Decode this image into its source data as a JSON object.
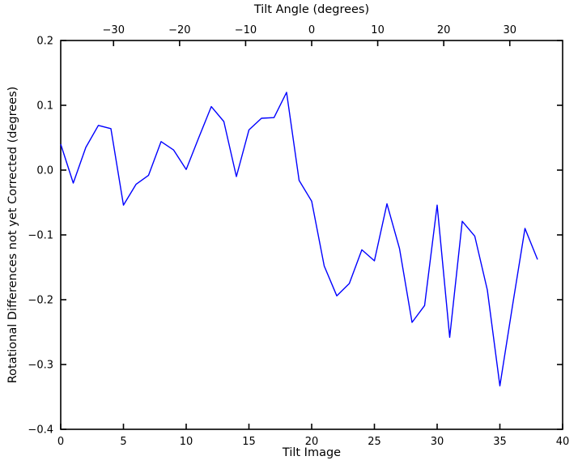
{
  "figure": {
    "top_axis_title": "Tilt Angle (degrees)",
    "x_axis_label": "Tilt Image",
    "y_axis_label": "Rotational Differences not yet Corrected (degrees)"
  },
  "chart_data": {
    "type": "line",
    "title": "Tilt Angle (degrees)",
    "xlabel": "Tilt Image",
    "ylabel": "Rotational Differences not yet Corrected (degrees)",
    "grid": false,
    "legend": null,
    "line_color": "#0000ff",
    "axis_color": "#000000",
    "background_color": "#ffffff",
    "xlim": [
      0,
      40
    ],
    "ylim": [
      -0.4,
      0.2
    ],
    "top_xlim": [
      -38,
      38
    ],
    "xticks": [
      0,
      5,
      10,
      15,
      20,
      25,
      30,
      35,
      40
    ],
    "xtick_labels": [
      "0",
      "5",
      "10",
      "15",
      "20",
      "25",
      "30",
      "35",
      "40"
    ],
    "yticks": [
      0.2,
      0.1,
      0.0,
      -0.1,
      -0.2,
      -0.3,
      -0.4
    ],
    "ytick_labels": [
      "0.2",
      "0.1",
      "0.0",
      "−0.1",
      "−0.2",
      "−0.3",
      "−0.4"
    ],
    "top_xticks": [
      -30,
      -20,
      -10,
      0,
      10,
      20,
      30
    ],
    "top_xtick_labels": [
      "−30",
      "−20",
      "−10",
      "0",
      "10",
      "20",
      "30"
    ],
    "x": [
      0,
      1,
      2,
      3,
      4,
      5,
      6,
      7,
      8,
      9,
      10,
      11,
      12,
      13,
      14,
      15,
      16,
      17,
      18,
      19,
      20,
      21,
      22,
      23,
      24,
      25,
      26,
      27,
      28,
      29,
      30,
      31,
      32,
      33,
      34,
      35,
      36,
      37,
      38
    ],
    "y": [
      0.04,
      -0.02,
      0.035,
      0.069,
      0.064,
      -0.054,
      -0.022,
      -0.008,
      0.044,
      0.031,
      0.001,
      0.05,
      0.098,
      0.075,
      -0.01,
      0.062,
      0.08,
      0.081,
      0.12,
      -0.016,
      -0.048,
      -0.148,
      -0.194,
      -0.175,
      -0.123,
      -0.14,
      -0.052,
      -0.121,
      -0.235,
      -0.209,
      -0.054,
      -0.258,
      -0.079,
      -0.102,
      -0.185,
      -0.333,
      -0.21,
      -0.09,
      -0.138
    ]
  }
}
